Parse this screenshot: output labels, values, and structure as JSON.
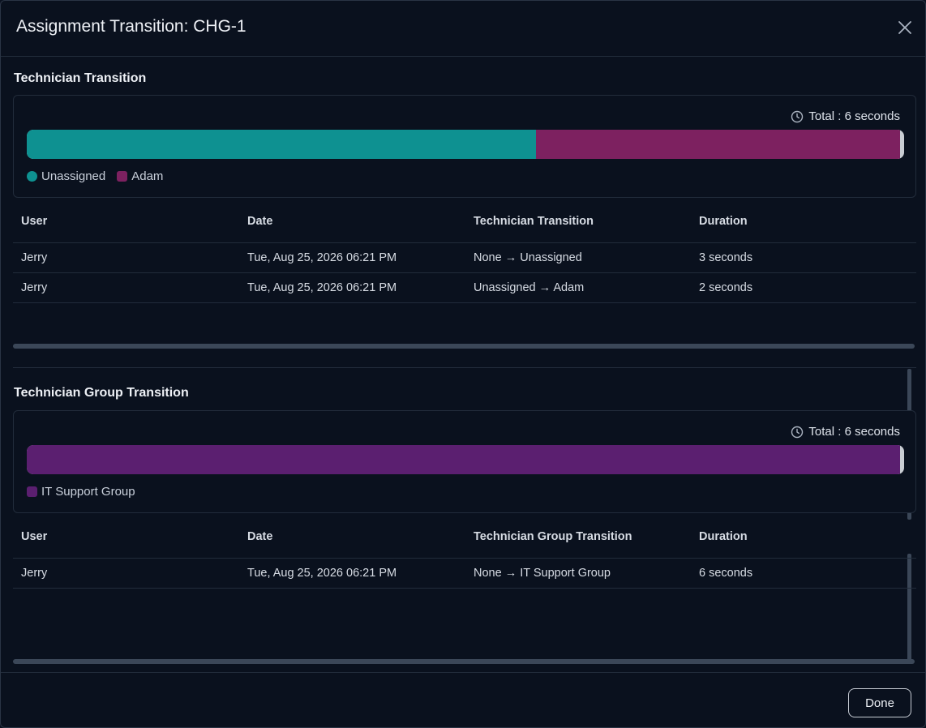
{
  "modal": {
    "title": "Assignment Transition: CHG-1",
    "done_label": "Done"
  },
  "technician": {
    "section_title": "Technician Transition",
    "total": "Total : 6 seconds",
    "bar": [
      {
        "label": "Unassigned",
        "fraction": 0.58,
        "color": "#0e9191"
      },
      {
        "label": "Adam",
        "fraction": 0.415,
        "color": "#7d2160"
      }
    ],
    "columns": [
      "User",
      "Date",
      "Technician Transition",
      "Duration"
    ],
    "rows": [
      {
        "user": "Jerry",
        "date": "Tue, Aug 25, 2026 06:21 PM",
        "transition": "None → Unassigned",
        "duration": "3 seconds"
      },
      {
        "user": "Jerry",
        "date": "Tue, Aug 25, 2026 06:21 PM",
        "transition": "Unassigned → Adam",
        "duration": "2 seconds"
      }
    ]
  },
  "group": {
    "section_title": "Technician Group Transition",
    "total": "Total : 6 seconds",
    "bar": [
      {
        "label": "IT Support Group",
        "fraction": 0.995,
        "color": "#5b1f70"
      }
    ],
    "columns": [
      "User",
      "Date",
      "Technician Group Transition",
      "Duration"
    ],
    "rows": [
      {
        "user": "Jerry",
        "date": "Tue, Aug 25, 2026 06:21 PM",
        "transition": "None → IT Support Group",
        "duration": "6 seconds"
      }
    ]
  },
  "icons": {
    "close": "close-icon",
    "clock": "clock-icon"
  }
}
